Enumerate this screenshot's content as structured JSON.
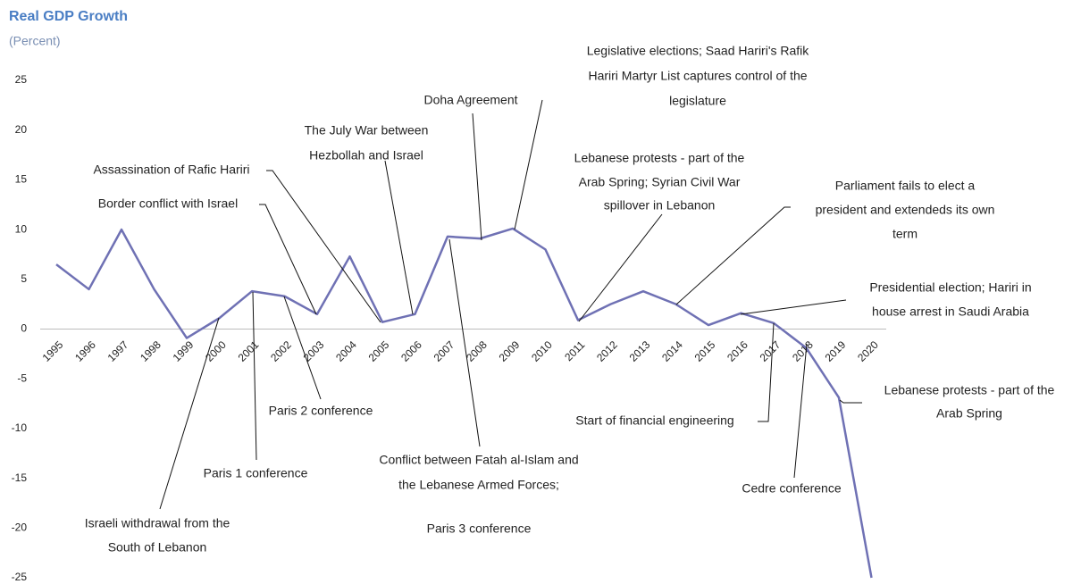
{
  "chart_data": {
    "type": "line",
    "title": "Real GDP Growth",
    "subtitle": "(Percent)",
    "categories": [
      "1995",
      "1996",
      "1997",
      "1998",
      "1999",
      "2000",
      "2001",
      "2002",
      "2003",
      "2004",
      "2005",
      "2006",
      "2007",
      "2008",
      "2009",
      "2010",
      "2011",
      "2012",
      "2013",
      "2014",
      "2015",
      "2016",
      "2017",
      "2018",
      "2019",
      "2020"
    ],
    "series": [
      {
        "name": "Real GDP Growth",
        "color": "#6f71b4",
        "values": [
          6.5,
          4.0,
          10.0,
          4.0,
          -0.9,
          1.1,
          3.8,
          3.3,
          1.5,
          7.3,
          0.7,
          1.5,
          9.3,
          9.1,
          10.1,
          8.0,
          0.9,
          2.5,
          3.8,
          2.5,
          0.4,
          1.6,
          0.6,
          -1.9,
          -6.9,
          -25.0
        ]
      }
    ],
    "ylim": [
      -25,
      25
    ],
    "yticks": [
      -25,
      -20,
      -15,
      -10,
      -5,
      0,
      5,
      10,
      15,
      20,
      25
    ],
    "grid": false,
    "annotations": [
      {
        "text": [
          "Legislative elections; Saad Hariri's Rafik",
          "Hariri Martyr List captures control of the",
          "legislature"
        ]
      },
      {
        "text": [
          "Doha Agreement"
        ]
      },
      {
        "text": [
          "The July War between",
          "Hezbollah and Israel"
        ]
      },
      {
        "text": [
          "Assassination of Rafic Hariri"
        ]
      },
      {
        "text": [
          "Border conflict with Israel"
        ]
      },
      {
        "text": [
          "Lebanese protests - part of the",
          "Arab Spring; Syrian Civil War",
          "spillover in Lebanon"
        ]
      },
      {
        "text": [
          "Parliament fails to elect a",
          "president and extendeds its own",
          "term"
        ]
      },
      {
        "text": [
          "Presidential election; Hariri in",
          "house arrest in Saudi Arabia"
        ]
      },
      {
        "text": [
          "Start of financial engineering"
        ]
      },
      {
        "text": [
          "Cedre conference"
        ]
      },
      {
        "text": [
          "Lebanese protests - part of the",
          "Arab Spring"
        ]
      },
      {
        "text": [
          "Paris 2 conference"
        ]
      },
      {
        "text": [
          "Paris 1 conference"
        ]
      },
      {
        "text": [
          "Israeli withdrawal from the",
          "South of Lebanon"
        ]
      },
      {
        "text": [
          "Conflict between Fatah al-Islam and",
          "the Lebanese Armed Forces;",
          "Paris 3 conference"
        ]
      }
    ]
  }
}
